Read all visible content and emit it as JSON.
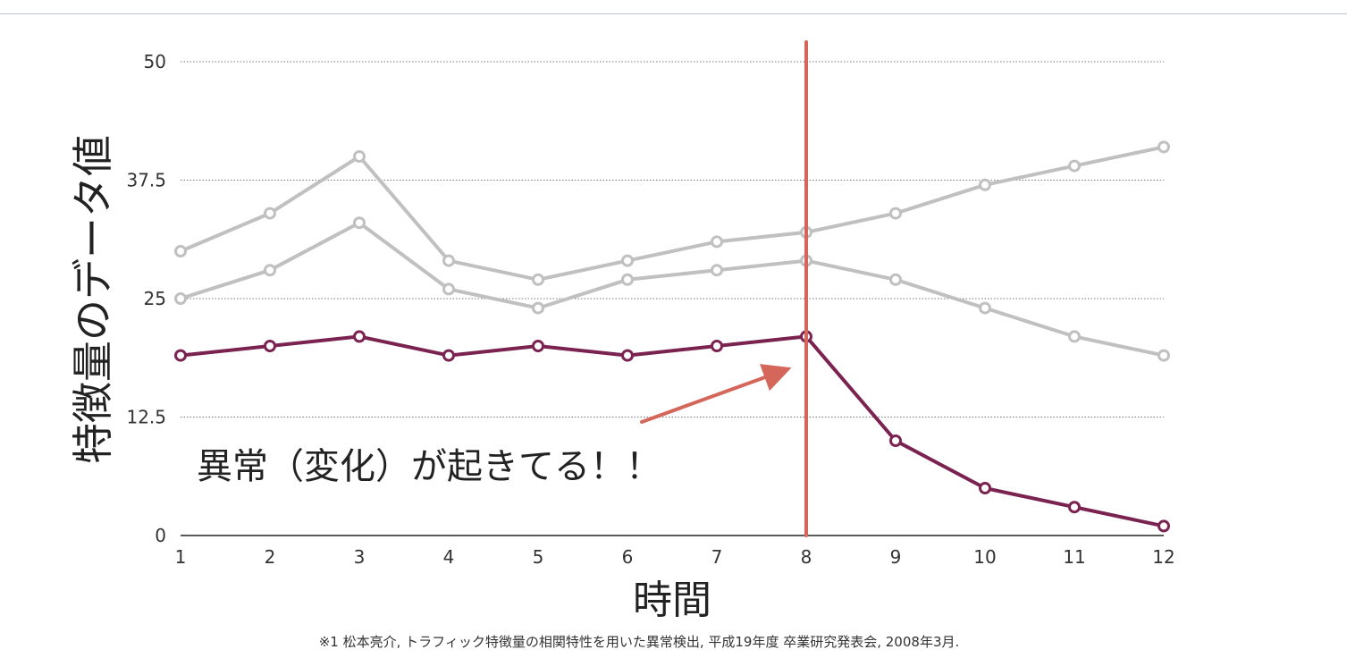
{
  "chart_data": {
    "type": "line",
    "xlabel": "時間",
    "ylabel": "特徴量のデータ値",
    "x": [
      1,
      2,
      3,
      4,
      5,
      6,
      7,
      8,
      9,
      10,
      11,
      12
    ],
    "xticks": [
      "1",
      "2",
      "3",
      "4",
      "5",
      "6",
      "7",
      "8",
      "9",
      "10",
      "11",
      "12"
    ],
    "yticks": [
      "0",
      "12.5",
      "25",
      "37.5",
      "50"
    ],
    "ylim": [
      0,
      50
    ],
    "grid": "horizontal dotted",
    "series": [
      {
        "color": "#c0c0c0",
        "values": [
          30,
          34,
          40,
          29,
          27,
          29,
          31,
          32,
          34,
          37,
          39,
          41
        ]
      },
      {
        "color": "#c0c0c0",
        "values": [
          25,
          28,
          33,
          26,
          24,
          27,
          28,
          29,
          27,
          24,
          21,
          19
        ]
      },
      {
        "color": "#7a2350",
        "values": [
          19,
          20,
          21,
          19,
          20,
          19,
          20,
          21,
          10,
          5,
          3,
          1
        ]
      }
    ],
    "change_point": {
      "x": 8,
      "color": "#d4675a"
    },
    "annotation": {
      "text": "異常（変化）が起きてる！！",
      "arrow_color": "#d4675a"
    }
  },
  "footnote": "※1 松本亮介, トラフィック特徴量の相関特性を用いた異常検出, 平成19年度 卒業研究発表会, 2008年3月."
}
